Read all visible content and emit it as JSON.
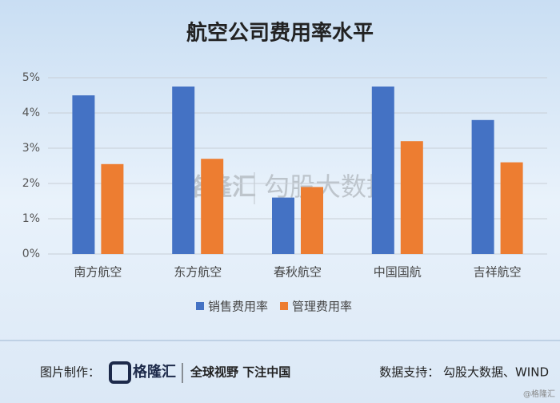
{
  "chart_data": {
    "type": "bar",
    "title": "航空公司费用率水平",
    "categories": [
      "南方航空",
      "东方航空",
      "春秋航空",
      "中国国航",
      "吉祥航空"
    ],
    "series": [
      {
        "name": "销售费用率",
        "color": "#4472c4",
        "values": [
          4.5,
          4.75,
          1.6,
          4.75,
          3.8
        ]
      },
      {
        "name": "管理费用率",
        "color": "#ed7d31",
        "values": [
          2.55,
          2.7,
          1.9,
          3.2,
          2.6
        ]
      }
    ],
    "ylim": [
      0,
      5
    ],
    "yticks": [
      {
        "value": 0,
        "label": "0%"
      },
      {
        "value": 1,
        "label": "1%"
      },
      {
        "value": 2,
        "label": "2%"
      },
      {
        "value": 3,
        "label": "3%"
      },
      {
        "value": 4,
        "label": "4%"
      },
      {
        "value": 5,
        "label": "5%"
      }
    ],
    "grid": true,
    "legend": "bottom"
  },
  "watermark": {
    "logo": "格隆汇",
    "text": "勾股大数据"
  },
  "footer": {
    "made_by_label": "图片制作：",
    "logo": "格隆汇",
    "slogan": "全球视野 下注中国",
    "source": "数据支持： 勾股大数据、WIND",
    "signature": "@格隆汇"
  }
}
